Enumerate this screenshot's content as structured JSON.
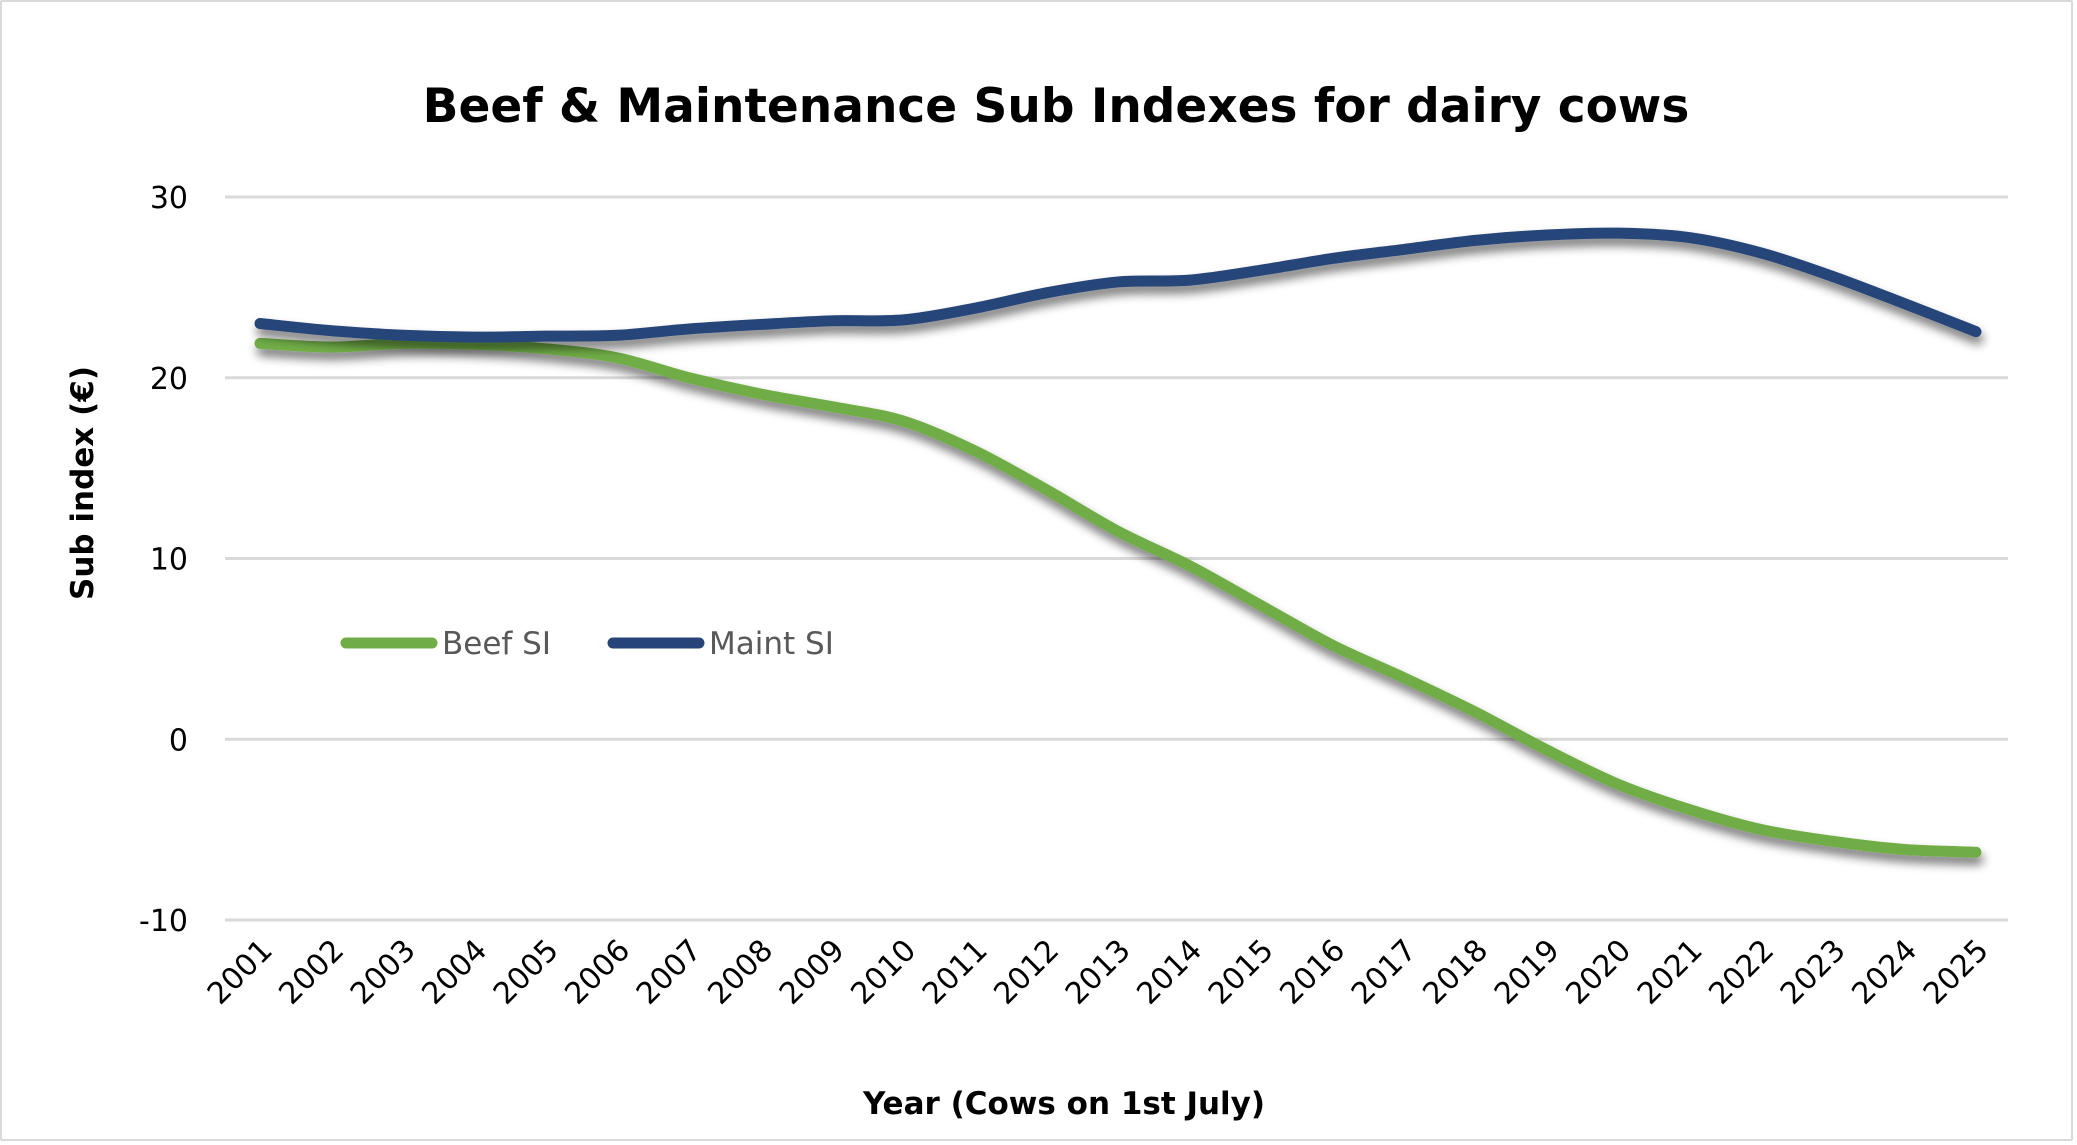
{
  "chart_data": {
    "type": "line",
    "title": "Beef & Maintenance Sub Indexes for dairy cows",
    "xlabel": "Year (Cows on 1st July)",
    "ylabel": "Sub index (€)",
    "ylim": [
      -10,
      30
    ],
    "yticks": [
      30,
      20,
      10,
      0,
      -10
    ],
    "yticklabels": [
      "30",
      "20",
      "10",
      "0",
      "-10"
    ],
    "grid": true,
    "legend_position": "middle-left",
    "categories": [
      "2001",
      "2002",
      "2003",
      "2004",
      "2005",
      "2006",
      "2007",
      "2008",
      "2009",
      "2010",
      "2011",
      "2012",
      "2013",
      "2014",
      "2015",
      "2016",
      "2017",
      "2018",
      "2019",
      "2020",
      "2021",
      "2022",
      "2023",
      "2024",
      "2025"
    ],
    "series": [
      {
        "name": "Beef SI",
        "color": "#70AD47",
        "values": [
          21.9,
          21.7,
          21.9,
          21.85,
          21.6,
          21.1,
          20.0,
          19.1,
          18.4,
          17.6,
          15.95,
          13.8,
          11.5,
          9.6,
          7.4,
          5.2,
          3.4,
          1.5,
          -0.6,
          -2.5,
          -3.9,
          -5.0,
          -5.65,
          -6.1,
          -6.25
        ]
      },
      {
        "name": "Maint SI",
        "color": "#264478",
        "values": [
          23.0,
          22.6,
          22.35,
          22.25,
          22.3,
          22.35,
          22.7,
          22.95,
          23.15,
          23.2,
          23.85,
          24.7,
          25.3,
          25.4,
          25.95,
          26.6,
          27.1,
          27.6,
          27.9,
          28.0,
          27.75,
          26.9,
          25.6,
          24.1,
          22.55
        ]
      }
    ]
  }
}
